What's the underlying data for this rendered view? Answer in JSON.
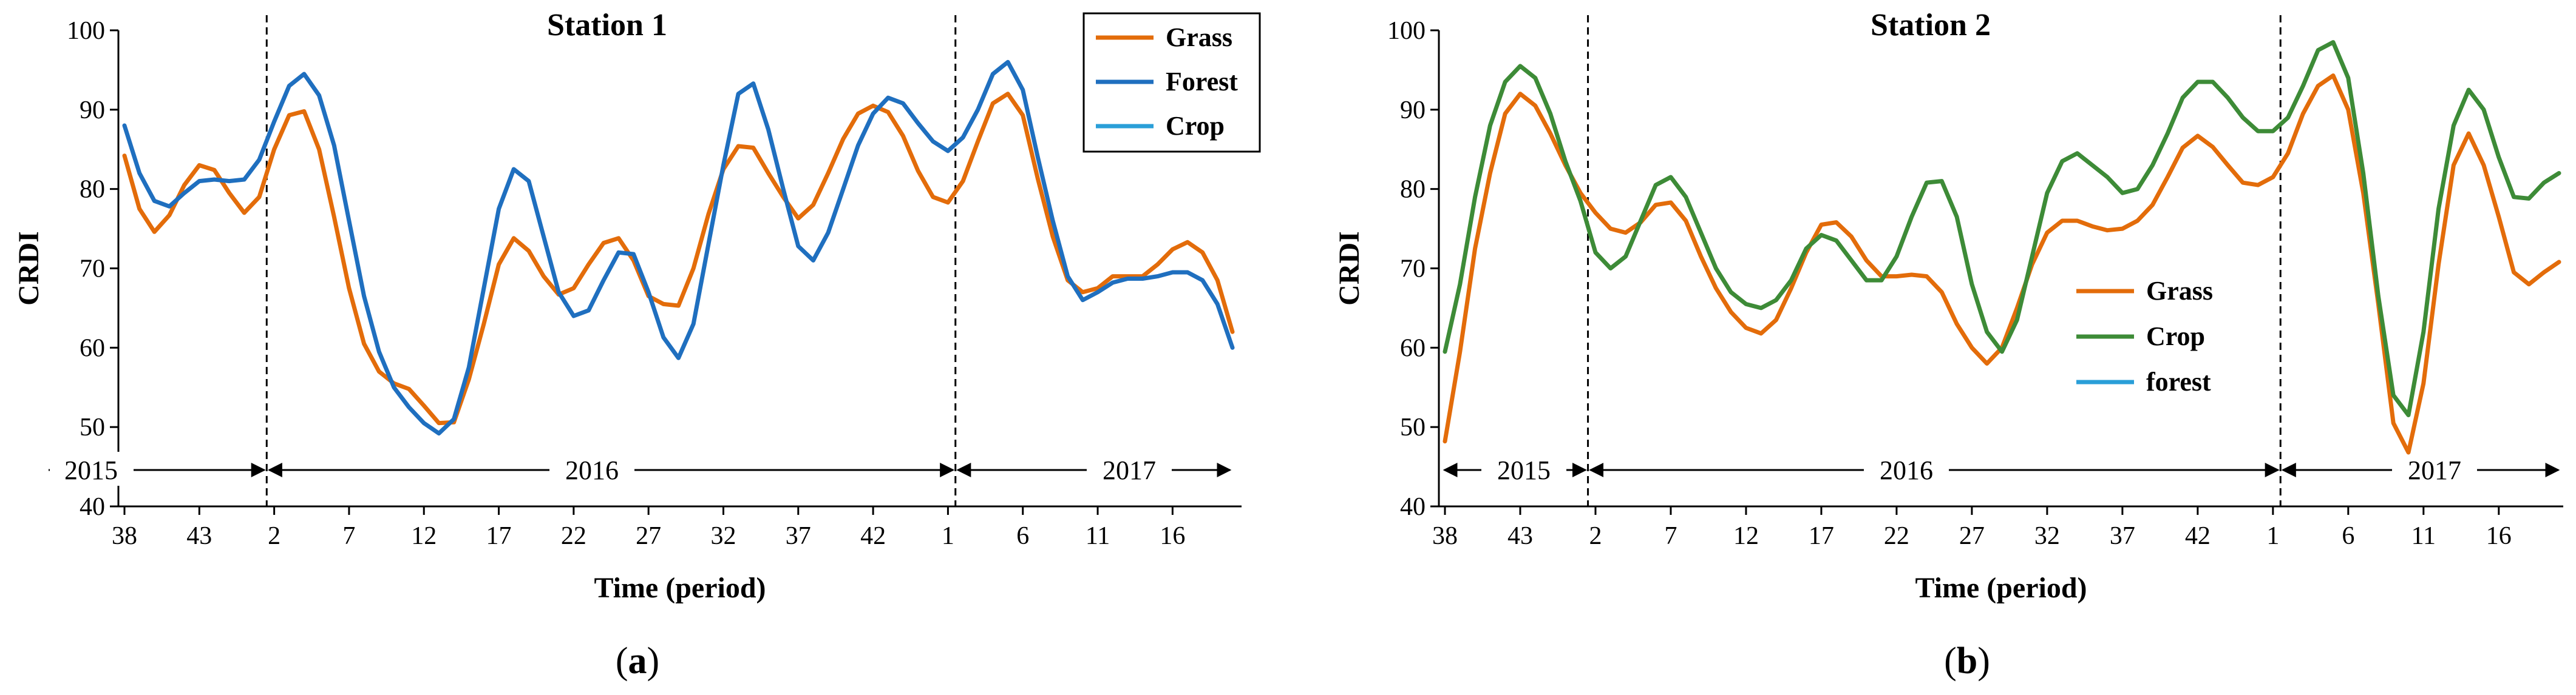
{
  "chart_data": [
    {
      "type": "line",
      "title": "Station 1",
      "caption": "(a)",
      "xlabel": "Time (period)",
      "ylabel": "CRDI",
      "ylim": [
        40,
        100
      ],
      "yticks": [
        40,
        50,
        60,
        70,
        80,
        90,
        100
      ],
      "xticks": [
        "38",
        "43",
        "2",
        "7",
        "12",
        "17",
        "22",
        "27",
        "32",
        "37",
        "42",
        "1",
        "6",
        "11",
        "16"
      ],
      "year_labels": [
        "2015",
        "2016",
        "2017"
      ],
      "year_boundaries": [
        9.5,
        55.5
      ],
      "legend_position": "top-right",
      "series": [
        {
          "name": "Grass",
          "color": "#E36C0A",
          "values": [
            84.2,
            77.5,
            74.6,
            76.7,
            80.5,
            83.0,
            82.4,
            79.5,
            77.0,
            79.0,
            85.0,
            89.3,
            89.8,
            85.0,
            76.5,
            67.5,
            60.5,
            57.0,
            55.5,
            54.8,
            52.7,
            50.5,
            50.6,
            56.0,
            63.0,
            70.5,
            73.8,
            72.2,
            69.0,
            66.7,
            67.5,
            70.5,
            73.2,
            73.8,
            71.0,
            66.5,
            65.5,
            65.3,
            70.0,
            76.8,
            82.5,
            85.4,
            85.2,
            82.0,
            79.0,
            76.3,
            78.0,
            82.0,
            86.3,
            89.5,
            90.5,
            89.7,
            86.7,
            82.3,
            79.0,
            78.3,
            81.0,
            86.0,
            90.8,
            92.0,
            89.3,
            81.3,
            74.0,
            68.5,
            67.0,
            67.5,
            69.0,
            69.0,
            69.0,
            70.5,
            72.4,
            73.3,
            72.0,
            68.5,
            62.0
          ]
        },
        {
          "name": "Forest",
          "color": "#1F6FBF",
          "values": [
            88.0,
            82.0,
            78.5,
            77.8,
            79.5,
            81.0,
            81.2,
            81.0,
            81.2,
            83.7,
            88.5,
            93.0,
            94.5,
            91.8,
            85.5,
            76.0,
            66.5,
            59.5,
            55.0,
            52.5,
            50.5,
            49.2,
            51.0,
            57.5,
            67.5,
            77.5,
            82.5,
            81.0,
            74.0,
            67.0,
            64.0,
            64.7,
            68.5,
            72.0,
            71.8,
            67.0,
            61.3,
            58.7,
            63.0,
            73.0,
            83.0,
            92.0,
            93.3,
            87.5,
            80.0,
            72.8,
            71.0,
            74.5,
            80.0,
            85.5,
            89.5,
            91.5,
            90.8,
            88.3,
            86.0,
            84.8,
            86.5,
            90.0,
            94.5,
            96.0,
            92.5,
            84.0,
            76.0,
            69.0,
            66.0,
            67.0,
            68.2,
            68.7,
            68.7,
            69.0,
            69.5,
            69.5,
            68.5,
            65.5,
            60.0
          ]
        },
        {
          "name": "Crop",
          "color": "#2A9FD8",
          "values": []
        }
      ]
    },
    {
      "type": "line",
      "title": "Station 2",
      "caption": "(b)",
      "xlabel": "Time (period)",
      "ylabel": "CRDI",
      "ylim": [
        40,
        100
      ],
      "yticks": [
        40,
        50,
        60,
        70,
        80,
        90,
        100
      ],
      "xticks": [
        "38",
        "43",
        "2",
        "7",
        "12",
        "17",
        "22",
        "27",
        "32",
        "37",
        "42",
        "1",
        "6",
        "11",
        "16"
      ],
      "year_labels": [
        "2015",
        "2016",
        "2017"
      ],
      "year_boundaries": [
        9.5,
        55.5
      ],
      "legend_position": "center-left",
      "series": [
        {
          "name": "Grass",
          "color": "#E36C0A",
          "values": [
            48.2,
            59.5,
            72.5,
            82.0,
            89.5,
            92.0,
            90.5,
            87.0,
            83.0,
            79.5,
            77.0,
            75.0,
            74.5,
            75.8,
            78.0,
            78.3,
            76.0,
            71.5,
            67.5,
            64.5,
            62.5,
            61.8,
            63.5,
            67.5,
            72.0,
            75.5,
            75.8,
            74.0,
            71.0,
            69.0,
            69.0,
            69.2,
            69.0,
            67.0,
            63.0,
            60.0,
            58.0,
            60.0,
            65.0,
            70.5,
            74.5,
            76.0,
            76.0,
            75.3,
            74.8,
            75.0,
            76.0,
            78.0,
            81.5,
            85.2,
            86.7,
            85.3,
            83.0,
            80.8,
            80.5,
            81.5,
            84.5,
            89.5,
            93.0,
            94.3,
            90.0,
            79.5,
            65.5,
            50.5,
            46.8,
            55.5,
            70.5,
            83.0,
            87.0,
            83.0,
            76.5,
            69.5,
            68.0,
            69.5,
            70.8
          ]
        },
        {
          "name": "Crop",
          "color": "#3D8B37",
          "values": [
            59.5,
            68.0,
            79.0,
            88.0,
            93.5,
            95.5,
            94.0,
            89.5,
            83.5,
            78.5,
            72.0,
            70.0,
            71.5,
            76.0,
            80.5,
            81.5,
            79.0,
            74.5,
            70.0,
            67.0,
            65.5,
            65.0,
            66.0,
            68.5,
            72.5,
            74.2,
            73.5,
            71.0,
            68.5,
            68.5,
            71.5,
            76.5,
            80.8,
            81.0,
            76.5,
            68.0,
            62.0,
            59.5,
            63.5,
            71.5,
            79.5,
            83.5,
            84.5,
            83.0,
            81.5,
            79.5,
            80.0,
            83.0,
            87.0,
            91.5,
            93.5,
            93.5,
            91.5,
            89.0,
            87.3,
            87.3,
            89.0,
            93.0,
            97.5,
            98.5,
            94.0,
            82.0,
            66.5,
            54.0,
            51.5,
            62.0,
            77.5,
            88.0,
            92.5,
            90.0,
            84.0,
            79.0,
            78.8,
            80.8,
            82.0
          ]
        },
        {
          "name": "forest",
          "color": "#2A9FD8",
          "values": []
        }
      ]
    }
  ]
}
